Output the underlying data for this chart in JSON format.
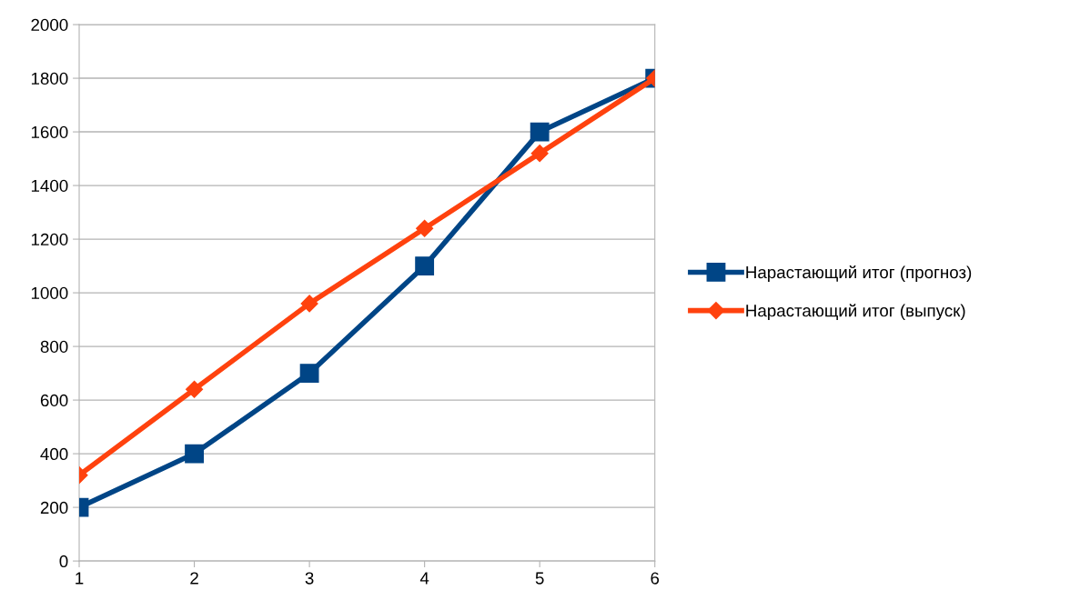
{
  "chart_data": {
    "type": "line",
    "categories": [
      "1",
      "2",
      "3",
      "4",
      "5",
      "6"
    ],
    "series": [
      {
        "name": "Нарастающий итог (прогноз)",
        "color": "#004586",
        "marker": "square",
        "values": [
          200,
          400,
          700,
          1100,
          1600,
          1800
        ]
      },
      {
        "name": "Нарастающий итог (выпуск)",
        "color": "#ff420e",
        "marker": "diamond",
        "values": [
          320,
          640,
          960,
          1240,
          1520,
          1800
        ]
      }
    ],
    "ylim": [
      0,
      2000
    ],
    "yticks": [
      0,
      200,
      400,
      600,
      800,
      1000,
      1200,
      1400,
      1600,
      1800,
      2000
    ],
    "grid": "y",
    "legend": "right",
    "line_style": "solid"
  }
}
